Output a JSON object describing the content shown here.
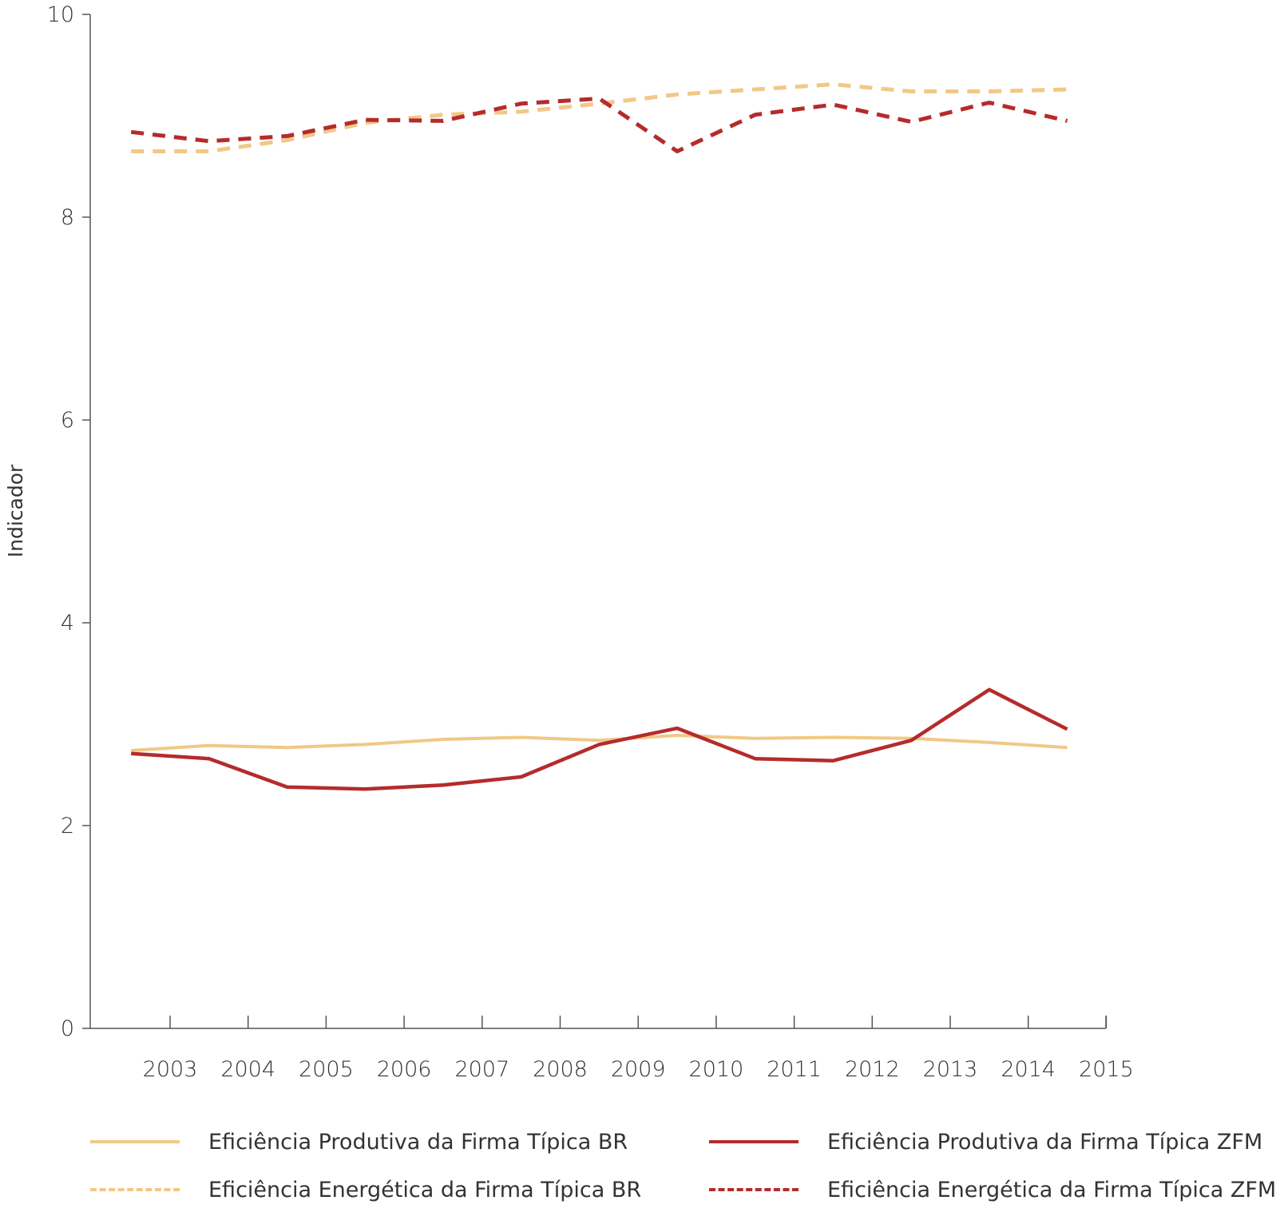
{
  "chart_data": {
    "type": "line",
    "ylabel": "Indicador",
    "xlabel": "",
    "ylim": [
      0,
      10
    ],
    "yticks": [
      0,
      2,
      4,
      6,
      8,
      10
    ],
    "x_tick_labels": [
      "2003",
      "2004",
      "2005",
      "2006",
      "2007",
      "2008",
      "2009",
      "2010",
      "2011",
      "2012",
      "2013",
      "2014",
      "2015"
    ],
    "x": [
      2002.5,
      2003.5,
      2004.5,
      2005.5,
      2006.5,
      2007.5,
      2008.5,
      2009.5,
      2010.5,
      2011.5,
      2012.5,
      2013.5,
      2014.5
    ],
    "grid": false,
    "legend_position": "bottom",
    "series": [
      {
        "name": "Eficiência Produtiva da Firma Típica BR",
        "color": "#f1c887",
        "style": "solid",
        "values": [
          2.74,
          2.79,
          2.77,
          2.8,
          2.85,
          2.87,
          2.84,
          2.89,
          2.86,
          2.87,
          2.86,
          2.82,
          2.77
        ]
      },
      {
        "name": "Eficiência Produtiva da Firma Típica ZFM",
        "color": "#b52b2b",
        "style": "solid",
        "values": [
          2.71,
          2.66,
          2.38,
          2.36,
          2.4,
          2.48,
          2.8,
          2.96,
          2.66,
          2.64,
          2.84,
          3.34,
          2.95
        ]
      },
      {
        "name": "Eficiência Energética da Firma Típica BR",
        "color": "#f1c887",
        "style": "dashed",
        "values": [
          8.65,
          8.65,
          8.76,
          8.93,
          9.01,
          9.04,
          9.12,
          9.21,
          9.26,
          9.31,
          9.24,
          9.24,
          9.26
        ]
      },
      {
        "name": "Eficiência Energética da Firma Típica ZFM",
        "color": "#b52b2b",
        "style": "dashed",
        "values": [
          8.84,
          8.75,
          8.8,
          8.96,
          8.95,
          9.12,
          9.17,
          8.65,
          9.01,
          9.11,
          8.94,
          9.13,
          8.95
        ]
      }
    ]
  }
}
